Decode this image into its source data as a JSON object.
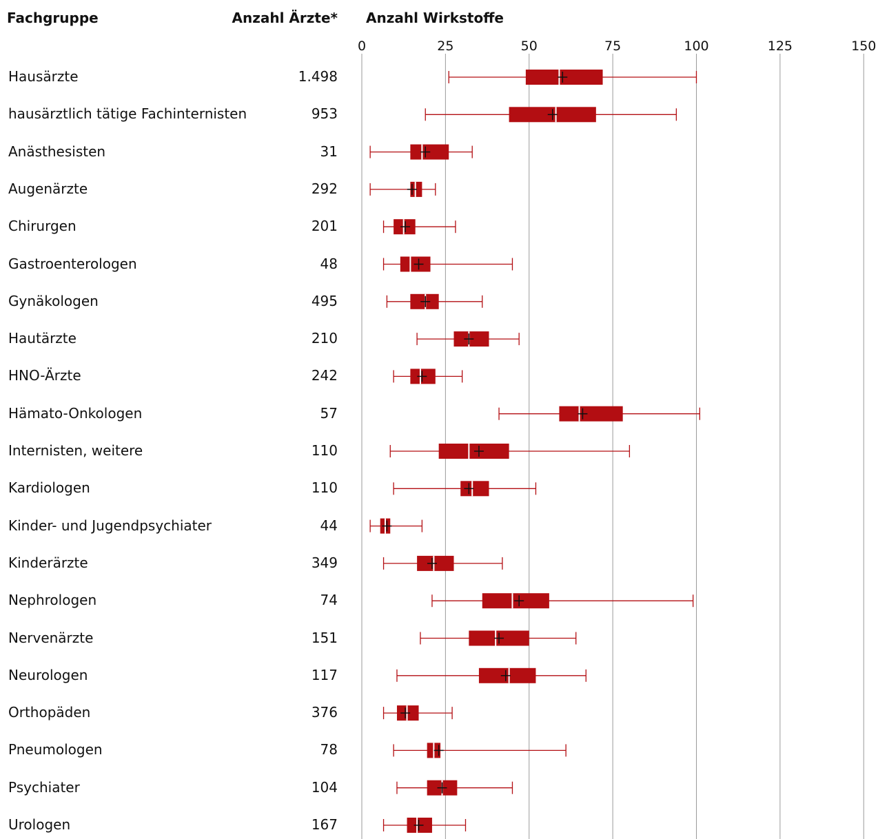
{
  "headers": {
    "group": "Fachgruppe",
    "count": "Anzahl Ärzte*",
    "axis": "Anzahl Wirkstoffe"
  },
  "chart_data": {
    "type": "boxplot",
    "orientation": "horizontal",
    "xlim": [
      0,
      150
    ],
    "xticks": [
      0,
      25,
      50,
      75,
      100,
      125,
      150
    ],
    "xtick_labels": [
      "0",
      "25",
      "50",
      "75",
      "100",
      "125",
      "150"
    ],
    "grid": "vertical",
    "box_color": "#b30e12",
    "rows": [
      {
        "label": "Hausärzte",
        "count": "1.498",
        "min": 26,
        "q1": 49,
        "median": 59,
        "mean": 60,
        "q3": 72,
        "max": 100
      },
      {
        "label": "hausärztlich tätige Fachinternisten",
        "count": "953",
        "min": 19,
        "q1": 44,
        "median": 58,
        "mean": 57,
        "q3": 70,
        "max": 94
      },
      {
        "label": "Anästhesisten",
        "count": "31",
        "min": 2.5,
        "q1": 14.5,
        "median": 18,
        "mean": 19,
        "q3": 26,
        "max": 33
      },
      {
        "label": "Augenärzte",
        "count": "292",
        "min": 2.5,
        "q1": 14.5,
        "median": 16,
        "mean": 15,
        "q3": 18,
        "max": 22
      },
      {
        "label": "Chirurgen",
        "count": "201",
        "min": 6.5,
        "q1": 9.5,
        "median": 12.5,
        "mean": 13,
        "q3": 16,
        "max": 28
      },
      {
        "label": "Gastroenterologen",
        "count": "48",
        "min": 6.5,
        "q1": 11.5,
        "median": 14.5,
        "mean": 17,
        "q3": 20.5,
        "max": 45
      },
      {
        "label": "Gynäkologen",
        "count": "495",
        "min": 7.5,
        "q1": 14.5,
        "median": 19,
        "mean": 19,
        "q3": 23,
        "max": 36
      },
      {
        "label": "Hautärzte",
        "count": "210",
        "min": 16.5,
        "q1": 27.5,
        "median": 32,
        "mean": 32,
        "q3": 38,
        "max": 47
      },
      {
        "label": "HNO-Ärzte",
        "count": "242",
        "min": 9.5,
        "q1": 14.5,
        "median": 17.5,
        "mean": 18,
        "q3": 22,
        "max": 30
      },
      {
        "label": "Hämato-Onkologen",
        "count": "57",
        "min": 41,
        "q1": 59,
        "median": 65,
        "mean": 66,
        "q3": 78,
        "max": 101
      },
      {
        "label": "Internisten, weitere",
        "count": "110",
        "min": 8.5,
        "q1": 23,
        "median": 32,
        "mean": 35,
        "q3": 44,
        "max": 80
      },
      {
        "label": "Kardiologen",
        "count": "110",
        "min": 9.5,
        "q1": 29.5,
        "median": 33,
        "mean": 32,
        "q3": 38,
        "max": 52
      },
      {
        "label": "Kinder- und Jugendpsychiater",
        "count": "44",
        "min": 2.5,
        "q1": 5.5,
        "median": 7,
        "mean": 7.5,
        "q3": 8.5,
        "max": 18
      },
      {
        "label": "Kinderärzte",
        "count": "349",
        "min": 6.5,
        "q1": 16.5,
        "median": 21.5,
        "mean": 21,
        "q3": 27.5,
        "max": 42
      },
      {
        "label": "Nephrologen",
        "count": "74",
        "min": 21,
        "q1": 36,
        "median": 45,
        "mean": 47,
        "q3": 56,
        "max": 99
      },
      {
        "label": "Nervenärzte",
        "count": "151",
        "min": 17.5,
        "q1": 32,
        "median": 40,
        "mean": 41,
        "q3": 50,
        "max": 64
      },
      {
        "label": "Neurologen",
        "count": "117",
        "min": 10.5,
        "q1": 35,
        "median": 44,
        "mean": 43,
        "q3": 52,
        "max": 67
      },
      {
        "label": "Orthopäden",
        "count": "376",
        "min": 6.5,
        "q1": 10.5,
        "median": 13.5,
        "mean": 13,
        "q3": 17,
        "max": 27
      },
      {
        "label": "Pneumologen",
        "count": "78",
        "min": 9.5,
        "q1": 19.5,
        "median": 21.5,
        "mean": 23,
        "q3": 23.5,
        "max": 61
      },
      {
        "label": "Psychiater",
        "count": "104",
        "min": 10.5,
        "q1": 19.5,
        "median": 24,
        "mean": 24,
        "q3": 28.5,
        "max": 45
      },
      {
        "label": "Urologen",
        "count": "167",
        "min": 6.5,
        "q1": 13.5,
        "median": 16.5,
        "mean": 17,
        "q3": 21,
        "max": 31
      }
    ]
  }
}
